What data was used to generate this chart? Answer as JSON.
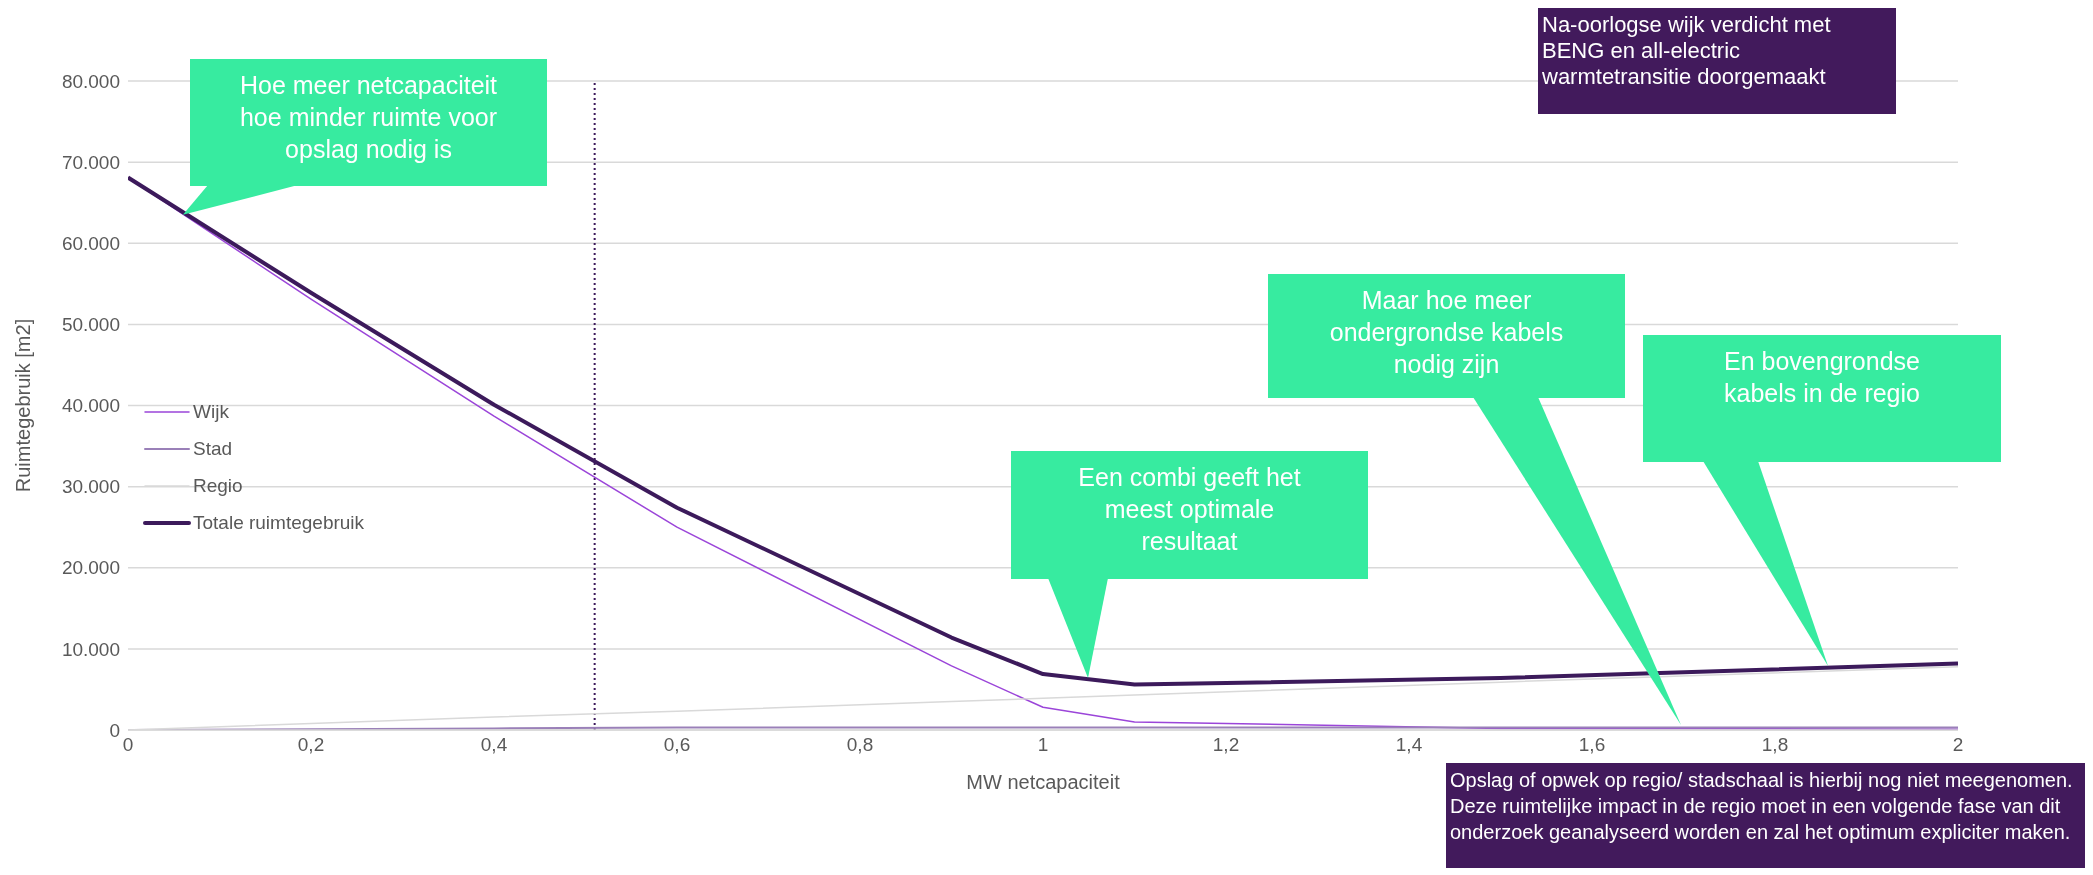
{
  "chart_data": {
    "type": "line",
    "xlabel": "MW netcapaciteit",
    "ylabel": "Ruimtegebruik [m2]",
    "xlim": [
      0,
      2
    ],
    "ylim": [
      0,
      80000
    ],
    "xticks": [
      0,
      {
        "value": 0.2,
        "label": "0,2"
      },
      {
        "value": 0.4,
        "label": "0,4"
      },
      {
        "value": 0.6,
        "label": "0,6"
      },
      {
        "value": 0.8,
        "label": "0,8"
      },
      1,
      {
        "value": 1.2,
        "label": "1,2"
      },
      {
        "value": 1.4,
        "label": "1,4"
      },
      {
        "value": 1.6,
        "label": "1,6"
      },
      {
        "value": 1.8,
        "label": "1,8"
      },
      2
    ],
    "yticks": [
      0,
      {
        "value": 10000,
        "label": "10.000"
      },
      {
        "value": 20000,
        "label": "20.000"
      },
      {
        "value": 30000,
        "label": "30.000"
      },
      {
        "value": 40000,
        "label": "40.000"
      },
      {
        "value": 50000,
        "label": "50.000"
      },
      {
        "value": 60000,
        "label": "60.000"
      },
      {
        "value": 70000,
        "label": "70.000"
      },
      {
        "value": 80000,
        "label": "80.000"
      }
    ],
    "x": [
      0,
      0.2,
      0.4,
      0.6,
      0.9,
      1,
      1.1,
      1.5,
      2
    ],
    "series": [
      {
        "name": "Wijk",
        "color": "#9b45d9",
        "values": [
          68100,
          53100,
          38700,
          25000,
          7900,
          2800,
          1000,
          200,
          100
        ]
      },
      {
        "name": "Stad",
        "color": "#9a80b8",
        "values": [
          0,
          100,
          200,
          300,
          300,
          300,
          300,
          300,
          300
        ]
      },
      {
        "name": "Regio",
        "color": "#d9d9d9",
        "values": [
          0,
          800,
          1600,
          2300,
          3500,
          3900,
          4300,
          5900,
          7800
        ]
      },
      {
        "name": "Totale ruimtegebruik",
        "color": "#3c1a5b",
        "values": [
          68100,
          53900,
          40100,
          27400,
          11400,
          6900,
          5600,
          6400,
          8200
        ]
      }
    ],
    "ref_lines": [
      {
        "axis": "x",
        "value": 0.51,
        "color": "#3c1a5b",
        "line_style": "dotted"
      }
    ],
    "annotations": [
      {
        "text": "Hoe meer netcapaciteit hoe minder ruimte voor opslag nodig is",
        "x": 0.06,
        "y": 63500
      },
      "Een combi geeft het meest optimale resultaat",
      "Maar hoe meer ondergrondse kabels nodig zijn",
      "En bovengrondse kabels in de regio",
      "Na-oorlogse wijk verdicht met BENG en all-electric warmtetransitie doorgemaakt",
      "Opslag of opwek op regio/ stadschaal is hierbij nog niet meegenomen. Deze ruimtelijke impact in de regio moet in een volgende fase van dit onderzoek geanalyseerd worden en zal het optimum expliciter maken."
    ],
    "grid": "y",
    "legend": "left",
    "marker": "none",
    "line_style": "solid"
  }
}
